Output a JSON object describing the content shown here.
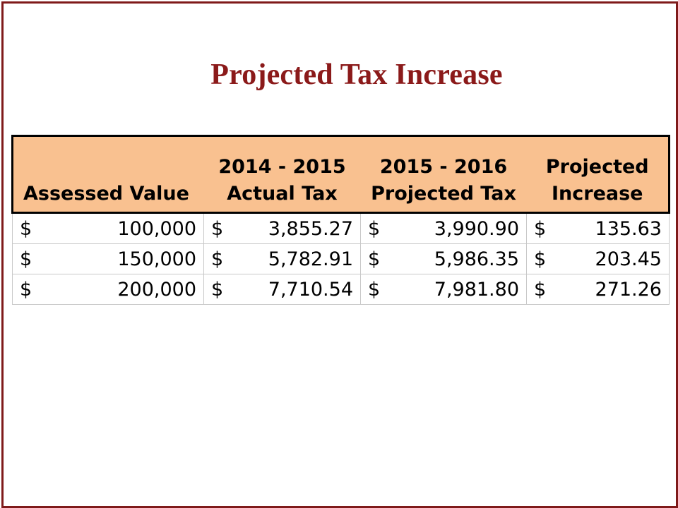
{
  "title": "Projected Tax Increase",
  "table": {
    "headers": [
      [
        "Assessed Value"
      ],
      [
        "2014 - 2015",
        "Actual Tax"
      ],
      [
        "2015 - 2016",
        "Projected Tax"
      ],
      [
        "Projected",
        "Increase"
      ]
    ],
    "currency_symbol": "$",
    "rows": [
      [
        "100,000",
        "3,855.27",
        "3,990.90",
        "135.63"
      ],
      [
        "150,000",
        "5,782.91",
        "5,986.35",
        "203.45"
      ],
      [
        "200,000",
        "7,710.54",
        "7,981.80",
        "271.26"
      ]
    ]
  },
  "colors": {
    "title": "#8b1a1a",
    "frame": "#7f1a1a",
    "header_fill": "#f9c190"
  }
}
